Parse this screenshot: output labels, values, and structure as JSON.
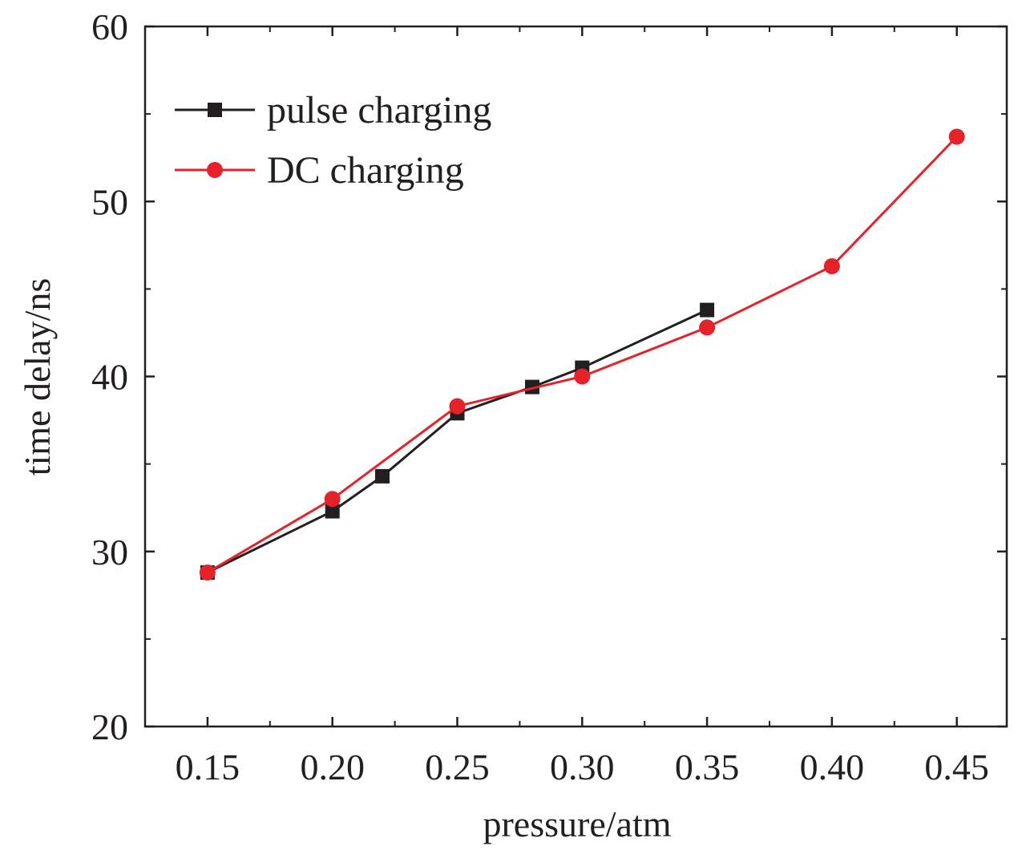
{
  "chart_data": {
    "type": "line",
    "xlabel": "pressure/atm",
    "ylabel": "time delay/ns",
    "xlim": [
      0.125,
      0.47
    ],
    "ylim": [
      20,
      60
    ],
    "x_ticks": [
      "0.15",
      "0.20",
      "0.25",
      "0.30",
      "0.35",
      "0.40",
      "0.45"
    ],
    "y_ticks": [
      "20",
      "30",
      "40",
      "50",
      "60"
    ],
    "grid": false,
    "legend_position": "top-left",
    "series": [
      {
        "name": "pulse charging",
        "color": "#231f20",
        "marker": "square",
        "x": [
          0.15,
          0.2,
          0.22,
          0.25,
          0.28,
          0.3,
          0.35
        ],
        "y": [
          28.8,
          32.3,
          34.3,
          37.9,
          39.4,
          40.5,
          43.8
        ]
      },
      {
        "name": "DC charging",
        "color": "#e3222a",
        "marker": "circle",
        "x": [
          0.15,
          0.2,
          0.25,
          0.3,
          0.35,
          0.4,
          0.45
        ],
        "y": [
          28.8,
          33.0,
          38.3,
          40.0,
          42.8,
          46.3,
          53.7
        ]
      }
    ]
  }
}
